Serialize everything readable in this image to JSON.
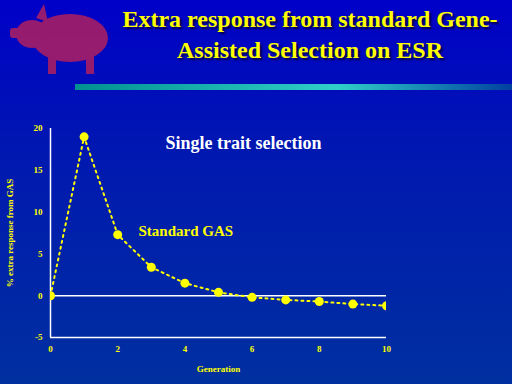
{
  "chart_data": {
    "type": "line",
    "title": "Extra response from standard Gene-Assisted Selection on ESR",
    "subtitle": "Single trait selection",
    "x": [
      0,
      1,
      2,
      3,
      4,
      5,
      6,
      7,
      8,
      9,
      10
    ],
    "series": [
      {
        "name": "Standard GAS",
        "color": "#ffff00",
        "marker": "circle",
        "line_style": "dotted",
        "values": [
          0,
          19.0,
          7.3,
          3.4,
          1.5,
          0.4,
          -0.2,
          -0.5,
          -0.7,
          -1.0,
          -1.2
        ]
      }
    ],
    "xlabel": "Generation",
    "ylabel": "% extra response from GAS",
    "xlim": [
      0,
      10
    ],
    "ylim": [
      -5,
      20
    ],
    "xticks": [
      0,
      2,
      4,
      6,
      8,
      10
    ],
    "yticks": [
      -5,
      0,
      5,
      10,
      15,
      20
    ]
  }
}
